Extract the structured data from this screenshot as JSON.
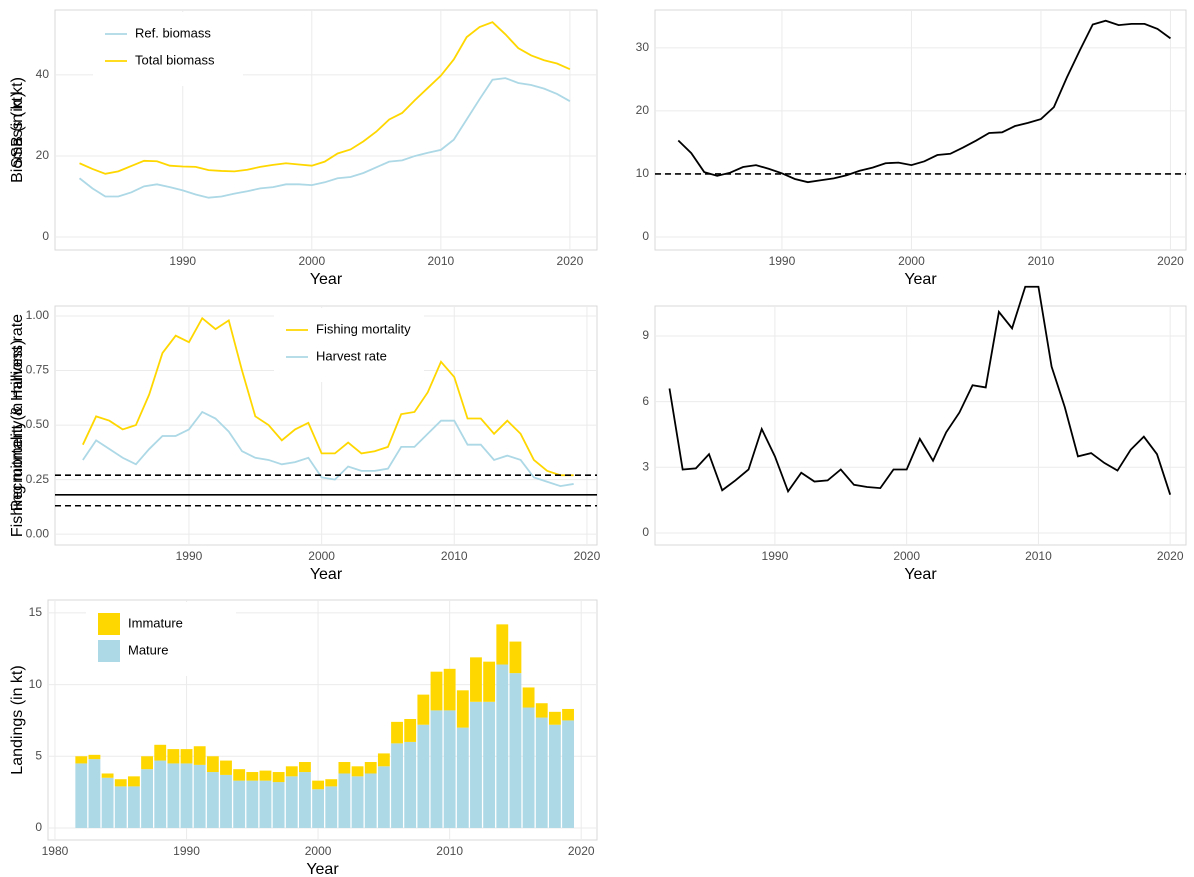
{
  "chart_data": [
    {
      "type": "line",
      "xlabel": "Year",
      "ylabel": "Biomass (in kt)",
      "x": [
        1982,
        1983,
        1984,
        1985,
        1986,
        1987,
        1988,
        1989,
        1990,
        1991,
        1992,
        1993,
        1994,
        1995,
        1996,
        1997,
        1998,
        1999,
        2000,
        2001,
        2002,
        2003,
        2004,
        2005,
        2006,
        2007,
        2008,
        2009,
        2010,
        2011,
        2012,
        2013,
        2014,
        2015,
        2016,
        2017,
        2018,
        2019,
        2020
      ],
      "series": [
        {
          "name": "Ref. biomass",
          "color": "#add8e6",
          "values": [
            14.5,
            12,
            10,
            10,
            11,
            12.5,
            13,
            12.3,
            11.5,
            10.5,
            9.7,
            10,
            10.7,
            11.3,
            12,
            12.3,
            13,
            13,
            12.8,
            13.5,
            14.5,
            14.8,
            15.8,
            17.2,
            18.6,
            18.9,
            20,
            20.8,
            21.5,
            24,
            29,
            34,
            38.8,
            39.2,
            38,
            37.5,
            36.6,
            35.3,
            33.5
          ]
        },
        {
          "name": "Total biomass",
          "color": "#ffd700",
          "values": [
            18.2,
            16.8,
            15.6,
            16.2,
            17.5,
            18.8,
            18.7,
            17.6,
            17.4,
            17.3,
            16.5,
            16.3,
            16.2,
            16.6,
            17.3,
            17.8,
            18.2,
            17.9,
            17.6,
            18.6,
            20.6,
            21.6,
            23.6,
            26,
            29,
            30.6,
            33.8,
            36.8,
            39.8,
            43.8,
            49.3,
            51.8,
            53,
            50,
            46.6,
            44.8,
            43.6,
            42.8,
            41.4
          ]
        }
      ],
      "xlim": [
        1980.1,
        2022.1
      ],
      "ylim": [
        -3.2,
        56
      ],
      "xticks": [
        1990,
        2000,
        2010,
        2020
      ],
      "yticks": [
        0,
        20,
        40
      ],
      "grid": true,
      "legend": "top-left"
    },
    {
      "type": "line",
      "xlabel": "Year",
      "ylabel": "SSB (in kt)",
      "x": [
        1982,
        1983,
        1984,
        1985,
        1986,
        1987,
        1988,
        1989,
        1990,
        1991,
        1992,
        1993,
        1994,
        1995,
        1996,
        1997,
        1998,
        1999,
        2000,
        2001,
        2002,
        2003,
        2004,
        2005,
        2006,
        2007,
        2008,
        2009,
        2010,
        2011,
        2012,
        2013,
        2014,
        2015,
        2016,
        2017,
        2018,
        2019,
        2020
      ],
      "values": [
        15.3,
        13.3,
        10.3,
        9.7,
        10.2,
        11.1,
        11.4,
        10.8,
        10.1,
        9.2,
        8.7,
        9,
        9.3,
        9.8,
        10.5,
        11,
        11.7,
        11.8,
        11.4,
        12,
        13,
        13.2,
        14.2,
        15.3,
        16.5,
        16.6,
        17.6,
        18.1,
        18.7,
        20.6,
        25.3,
        29.6,
        33.7,
        34.3,
        33.6,
        33.8,
        33.8,
        33,
        31.5
      ],
      "color": "#000000",
      "hlines": [
        {
          "value": 10,
          "style": "dashed"
        }
      ],
      "xlim": [
        1980.2,
        2021.2
      ],
      "ylim": [
        -2.06,
        36
      ],
      "xticks": [
        1990,
        2000,
        2010,
        2020
      ],
      "yticks": [
        0,
        10,
        20,
        30
      ],
      "grid": true
    },
    {
      "type": "line",
      "xlabel": "Year",
      "ylabel": "Fishing mortality & Harvest rate",
      "x": [
        1982,
        1983,
        1984,
        1985,
        1986,
        1987,
        1988,
        1989,
        1990,
        1991,
        1992,
        1993,
        1994,
        1995,
        1996,
        1997,
        1998,
        1999,
        2000,
        2001,
        2002,
        2003,
        2004,
        2005,
        2006,
        2007,
        2008,
        2009,
        2010,
        2011,
        2012,
        2013,
        2014,
        2015,
        2016,
        2017,
        2018,
        2019
      ],
      "series": [
        {
          "name": "Fishing mortality",
          "color": "#ffd700",
          "values": [
            0.41,
            0.54,
            0.52,
            0.48,
            0.5,
            0.64,
            0.83,
            0.91,
            0.88,
            0.99,
            0.94,
            0.98,
            0.75,
            0.54,
            0.5,
            0.43,
            0.48,
            0.51,
            0.37,
            0.37,
            0.42,
            0.37,
            0.38,
            0.4,
            0.55,
            0.56,
            0.65,
            0.79,
            0.72,
            0.53,
            0.53,
            0.46,
            0.52,
            0.46,
            0.34,
            0.29,
            0.27,
            0.27
          ]
        },
        {
          "name": "Harvest rate",
          "color": "#add8e6",
          "values": [
            0.34,
            0.43,
            0.39,
            0.35,
            0.32,
            0.39,
            0.45,
            0.45,
            0.48,
            0.56,
            0.53,
            0.47,
            0.38,
            0.35,
            0.34,
            0.32,
            0.33,
            0.35,
            0.26,
            0.25,
            0.31,
            0.29,
            0.29,
            0.3,
            0.4,
            0.4,
            0.46,
            0.52,
            0.52,
            0.41,
            0.41,
            0.34,
            0.36,
            0.34,
            0.26,
            0.24,
            0.22,
            0.23
          ]
        }
      ],
      "hlines": [
        {
          "value": 0.27,
          "style": "dashed"
        },
        {
          "value": 0.18,
          "style": "solid"
        },
        {
          "value": 0.13,
          "style": "dashed"
        }
      ],
      "xlim": [
        1979.9,
        2020.76
      ],
      "ylim": [
        -0.05,
        1.046
      ],
      "xticks": [
        1990,
        2000,
        2010,
        2020
      ],
      "yticks": [
        {
          "value": 0,
          "label": "0.00"
        },
        {
          "value": 0.25,
          "label": "0.25"
        },
        {
          "value": 0.5,
          "label": "0.50"
        },
        {
          "value": 0.75,
          "label": "0.75"
        },
        {
          "value": 1,
          "label": "1.00"
        }
      ],
      "grid": true,
      "legend": "top-center"
    },
    {
      "type": "line",
      "xlabel": "Year",
      "ylabel": "Recruitment (in millions)",
      "x": [
        1982,
        1983,
        1984,
        1985,
        1986,
        1987,
        1988,
        1989,
        1990,
        1991,
        1992,
        1993,
        1994,
        1995,
        1996,
        1997,
        1998,
        1999,
        2000,
        2001,
        2002,
        2003,
        2004,
        2005,
        2006,
        2007,
        2008,
        2009,
        2010,
        2011,
        2012,
        2013,
        2014,
        2015,
        2016,
        2017,
        2018,
        2019,
        2020
      ],
      "values": [
        6.6,
        2.9,
        2.95,
        3.6,
        1.95,
        2.4,
        2.9,
        4.75,
        3.5,
        1.9,
        2.75,
        2.35,
        2.4,
        2.9,
        2.2,
        2.1,
        2.05,
        2.9,
        2.9,
        4.3,
        3.3,
        4.6,
        5.5,
        6.75,
        6.65,
        10.1,
        9.35,
        11.25,
        11.25,
        7.6,
        5.75,
        3.5,
        3.65,
        3.2,
        2.85,
        3.8,
        4.4,
        3.6,
        1.75
      ],
      "color": "#000000",
      "xlim": [
        1980.9,
        2021.2
      ],
      "ylim": [
        -0.55,
        10.37
      ],
      "xticks": [
        1990,
        2000,
        2010,
        2020
      ],
      "yticks": [
        0,
        3,
        6,
        9
      ],
      "grid": true
    },
    {
      "type": "stacked-bar",
      "xlabel": "Year",
      "ylabel": "Landings (in kt)",
      "x": [
        1982,
        1983,
        1984,
        1985,
        1986,
        1987,
        1988,
        1989,
        1990,
        1991,
        1992,
        1993,
        1994,
        1995,
        1996,
        1997,
        1998,
        1999,
        2000,
        2001,
        2002,
        2003,
        2004,
        2005,
        2006,
        2007,
        2008,
        2009,
        2010,
        2011,
        2012,
        2013,
        2014,
        2015,
        2016,
        2017,
        2018,
        2019
      ],
      "series": [
        {
          "name": "Mature",
          "color": "#add8e6",
          "values": [
            4.5,
            4.8,
            3.5,
            2.9,
            2.9,
            4.1,
            4.7,
            4.5,
            4.5,
            4.4,
            3.9,
            3.7,
            3.3,
            3.3,
            3.3,
            3.2,
            3.6,
            3.9,
            2.7,
            2.9,
            3.8,
            3.6,
            3.8,
            4.3,
            5.9,
            6,
            7.2,
            8.2,
            8.2,
            7,
            8.8,
            8.8,
            11.4,
            10.8,
            8.4,
            7.7,
            7.2,
            7.5
          ]
        },
        {
          "name": "Immature",
          "color": "#ffd700",
          "values": [
            0.5,
            0.3,
            0.3,
            0.5,
            0.7,
            0.9,
            1.1,
            1,
            1,
            1.3,
            1.1,
            1,
            0.8,
            0.6,
            0.7,
            0.7,
            0.7,
            0.7,
            0.6,
            0.5,
            0.8,
            0.7,
            0.8,
            0.9,
            1.5,
            1.6,
            2.1,
            2.7,
            2.9,
            2.6,
            3.1,
            2.8,
            2.8,
            2.2,
            1.4,
            1,
            0.9,
            0.8
          ]
        }
      ],
      "xlim": [
        1979.47,
        2021.2
      ],
      "ylim": [
        -0.84,
        15.9
      ],
      "xticks": [
        1980,
        1990,
        2000,
        2010,
        2020
      ],
      "yticks": [
        0,
        5,
        10,
        15
      ],
      "grid": true,
      "legend": "top-left"
    }
  ]
}
